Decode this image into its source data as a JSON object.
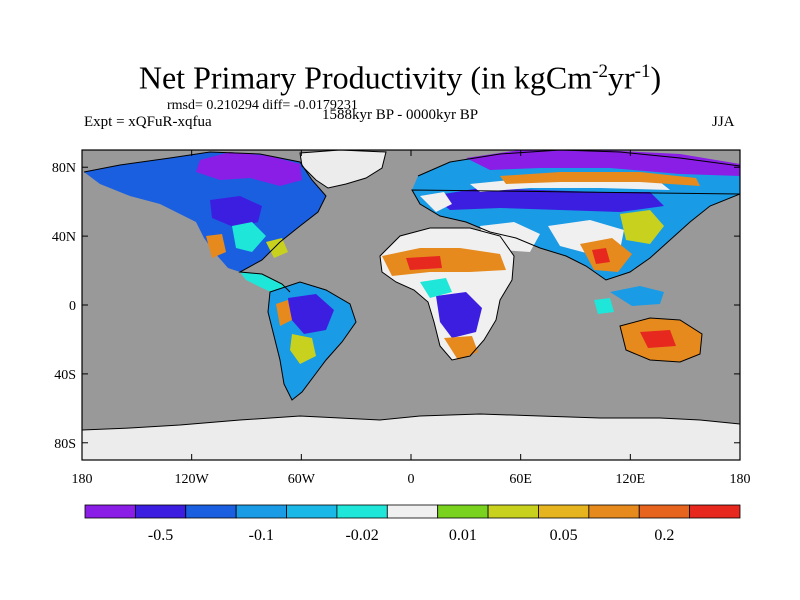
{
  "header": {
    "title_main": "Net Primary Productivity (in kgCm",
    "title_sup1": "-2",
    "title_mid": "yr",
    "title_sup2": "-1",
    "title_end": ")",
    "stats": "rmsd= 0.210294 diff= -0.0179231",
    "expt": "Expt = xQFuR-xqfua",
    "period": "1588kyr BP - 0000kyr BP",
    "season": "JJA"
  },
  "axes": {
    "lat_labels": [
      "80N",
      "40N",
      "0",
      "40S",
      "80S"
    ],
    "lat_values": [
      80,
      40,
      0,
      -40,
      -80
    ],
    "lon_labels": [
      "180",
      "120W",
      "60W",
      "0",
      "60E",
      "120E",
      "180"
    ],
    "lon_values": [
      -180,
      -120,
      -60,
      0,
      60,
      120,
      180
    ]
  },
  "colorbar": {
    "colors": [
      "#8a1ee6",
      "#3c1ee0",
      "#1a5fe0",
      "#1a9be6",
      "#1ab8e6",
      "#1ee6d8",
      "#f0f0f0",
      "#78d21e",
      "#c8d21e",
      "#e6b41e",
      "#e68a1e",
      "#e6641e",
      "#e6281e"
    ],
    "labels": [
      "-0.5",
      "-0.1",
      "-0.02",
      "0.01",
      "0.05",
      "0.2"
    ]
  },
  "map_colors": {
    "ocean": "#999999",
    "ice": "#ececec",
    "purple": "#8a1ee6",
    "blue": "#3c1ee0",
    "midblue": "#1a5fe0",
    "lightblue": "#1a9be6",
    "cyan": "#1ee6d8",
    "white": "#f0f0f0",
    "yellow": "#c8d21e",
    "orange": "#e68a1e",
    "red": "#e6281e"
  }
}
